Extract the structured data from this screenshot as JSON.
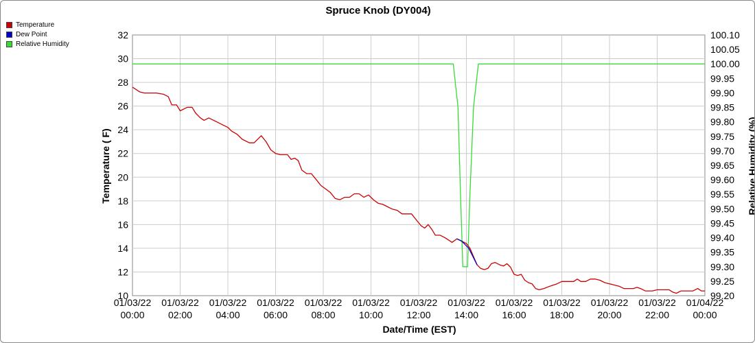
{
  "chart_data": {
    "type": "line",
    "title": "Spruce Knob (DY004)",
    "xlabel": "Date/Time (EST)",
    "ylabel": "Temperature ( F)",
    "y2label": "Relative Humidity (%)",
    "xlim_hours": [
      0,
      24
    ],
    "ylim": [
      10,
      32
    ],
    "y2lim": [
      99.2,
      100.1
    ],
    "grid": true,
    "legend_position": "top-left",
    "x_ticks": [
      {
        "date": "01/03/22",
        "time": "00:00"
      },
      {
        "date": "01/03/22",
        "time": "02:00"
      },
      {
        "date": "01/03/22",
        "time": "04:00"
      },
      {
        "date": "01/03/22",
        "time": "06:00"
      },
      {
        "date": "01/03/22",
        "time": "08:00"
      },
      {
        "date": "01/03/22",
        "time": "10:00"
      },
      {
        "date": "01/03/22",
        "time": "12:00"
      },
      {
        "date": "01/03/22",
        "time": "14:00"
      },
      {
        "date": "01/03/22",
        "time": "16:00"
      },
      {
        "date": "01/03/22",
        "time": "18:00"
      },
      {
        "date": "01/03/22",
        "time": "20:00"
      },
      {
        "date": "01/03/22",
        "time": "22:00"
      },
      {
        "date": "01/04/22",
        "time": "00:00"
      }
    ],
    "y_ticks": [
      "10",
      "12",
      "14",
      "16",
      "18",
      "20",
      "22",
      "24",
      "26",
      "28",
      "30",
      "32"
    ],
    "y2_ticks": [
      "99.20",
      "99.25",
      "99.30",
      "99.35",
      "99.40",
      "99.45",
      "99.50",
      "99.55",
      "99.60",
      "99.65",
      "99.70",
      "99.75",
      "99.80",
      "99.85",
      "99.90",
      "99.95",
      "100.00",
      "100.05",
      "100.10"
    ],
    "series": [
      {
        "name": "Temperature",
        "color": "#cc0000",
        "axis": "left",
        "points": [
          [
            0,
            27.6
          ],
          [
            0.3,
            27.2
          ],
          [
            0.5,
            27.1
          ],
          [
            1,
            27.1
          ],
          [
            1.3,
            27.0
          ],
          [
            1.5,
            26.8
          ],
          [
            1.65,
            26.1
          ],
          [
            1.85,
            26.1
          ],
          [
            2,
            25.6
          ],
          [
            2.3,
            25.9
          ],
          [
            2.5,
            25.9
          ],
          [
            2.65,
            25.4
          ],
          [
            2.85,
            25.0
          ],
          [
            3.0,
            24.8
          ],
          [
            3.2,
            25.0
          ],
          [
            3.5,
            24.7
          ],
          [
            3.8,
            24.4
          ],
          [
            4.0,
            24.2
          ],
          [
            4.15,
            23.9
          ],
          [
            4.4,
            23.6
          ],
          [
            4.6,
            23.2
          ],
          [
            4.9,
            22.9
          ],
          [
            5.1,
            22.9
          ],
          [
            5.4,
            23.5
          ],
          [
            5.6,
            23.0
          ],
          [
            5.8,
            22.3
          ],
          [
            6.0,
            22.0
          ],
          [
            6.2,
            21.9
          ],
          [
            6.5,
            21.9
          ],
          [
            6.65,
            21.5
          ],
          [
            6.8,
            21.6
          ],
          [
            6.95,
            21.4
          ],
          [
            7.1,
            20.6
          ],
          [
            7.3,
            20.3
          ],
          [
            7.5,
            20.3
          ],
          [
            7.7,
            19.8
          ],
          [
            7.9,
            19.3
          ],
          [
            8.1,
            19.0
          ],
          [
            8.3,
            18.7
          ],
          [
            8.5,
            18.2
          ],
          [
            8.7,
            18.1
          ],
          [
            8.9,
            18.3
          ],
          [
            9.1,
            18.3
          ],
          [
            9.3,
            18.6
          ],
          [
            9.5,
            18.6
          ],
          [
            9.7,
            18.3
          ],
          [
            9.9,
            18.5
          ],
          [
            10.1,
            18.1
          ],
          [
            10.3,
            17.8
          ],
          [
            10.5,
            17.7
          ],
          [
            10.7,
            17.5
          ],
          [
            10.9,
            17.3
          ],
          [
            11.1,
            17.2
          ],
          [
            11.3,
            16.9
          ],
          [
            11.5,
            16.9
          ],
          [
            11.7,
            16.9
          ],
          [
            11.9,
            16.4
          ],
          [
            12.1,
            15.9
          ],
          [
            12.25,
            15.7
          ],
          [
            12.4,
            16.0
          ],
          [
            12.55,
            15.6
          ],
          [
            12.7,
            15.1
          ],
          [
            12.9,
            15.1
          ],
          [
            13.1,
            14.9
          ],
          [
            13.4,
            14.5
          ],
          [
            13.6,
            14.8
          ],
          [
            13.8,
            14.6
          ],
          [
            14.0,
            14.4
          ],
          [
            14.15,
            14.0
          ],
          [
            14.3,
            13.3
          ],
          [
            14.45,
            12.6
          ],
          [
            14.6,
            12.3
          ],
          [
            14.75,
            12.2
          ],
          [
            14.9,
            12.3
          ],
          [
            15.05,
            12.7
          ],
          [
            15.2,
            12.8
          ],
          [
            15.4,
            12.6
          ],
          [
            15.55,
            12.5
          ],
          [
            15.7,
            12.7
          ],
          [
            15.85,
            12.4
          ],
          [
            16.0,
            11.8
          ],
          [
            16.15,
            11.7
          ],
          [
            16.3,
            11.8
          ],
          [
            16.45,
            11.3
          ],
          [
            16.6,
            11.1
          ],
          [
            16.75,
            11.0
          ],
          [
            16.9,
            10.6
          ],
          [
            17.05,
            10.5
          ],
          [
            17.25,
            10.6
          ],
          [
            17.5,
            10.8
          ],
          [
            17.8,
            11.0
          ],
          [
            18.0,
            11.2
          ],
          [
            18.2,
            11.2
          ],
          [
            18.5,
            11.2
          ],
          [
            18.65,
            11.4
          ],
          [
            18.8,
            11.2
          ],
          [
            19.0,
            11.2
          ],
          [
            19.2,
            11.4
          ],
          [
            19.4,
            11.4
          ],
          [
            19.6,
            11.3
          ],
          [
            19.8,
            11.1
          ],
          [
            20.0,
            11.0
          ],
          [
            20.2,
            10.9
          ],
          [
            20.4,
            10.8
          ],
          [
            20.6,
            10.6
          ],
          [
            20.8,
            10.6
          ],
          [
            21.0,
            10.6
          ],
          [
            21.15,
            10.7
          ],
          [
            21.3,
            10.6
          ],
          [
            21.5,
            10.4
          ],
          [
            21.8,
            10.4
          ],
          [
            22.0,
            10.5
          ],
          [
            22.3,
            10.5
          ],
          [
            22.5,
            10.5
          ],
          [
            22.65,
            10.3
          ],
          [
            22.8,
            10.2
          ],
          [
            23.0,
            10.4
          ],
          [
            23.3,
            10.4
          ],
          [
            23.5,
            10.4
          ],
          [
            23.7,
            10.6
          ],
          [
            23.85,
            10.4
          ],
          [
            24.0,
            10.4
          ]
        ]
      },
      {
        "name": "Dew Point",
        "color": "#0000cc",
        "axis": "left",
        "points": [
          [
            13.6,
            14.8
          ],
          [
            13.8,
            14.6
          ],
          [
            13.95,
            14.3
          ],
          [
            14.1,
            14.0
          ],
          [
            14.25,
            13.4
          ],
          [
            14.45,
            12.6
          ]
        ]
      },
      {
        "name": "Relative Humidity",
        "color": "#33dd33",
        "axis": "right",
        "points": [
          [
            0,
            100.0
          ],
          [
            13.45,
            100.0
          ],
          [
            13.65,
            99.85
          ],
          [
            13.75,
            99.56
          ],
          [
            13.85,
            99.3
          ],
          [
            14.05,
            99.3
          ],
          [
            14.15,
            99.55
          ],
          [
            14.3,
            99.85
          ],
          [
            14.5,
            100.0
          ],
          [
            24.0,
            100.0
          ]
        ]
      }
    ]
  }
}
